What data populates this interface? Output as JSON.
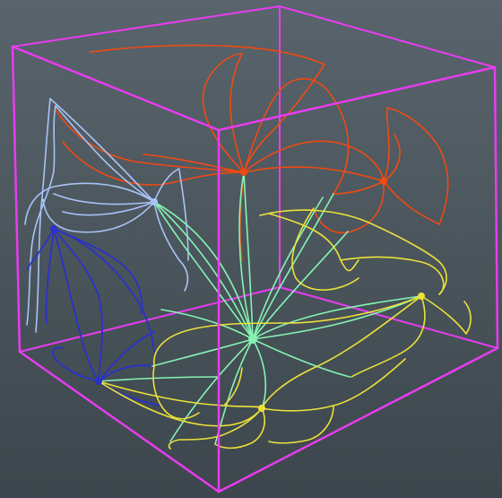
{
  "scene": {
    "background_top": "#59646c",
    "background_bottom": "#3c464c",
    "box_color": "#e83cf0",
    "bundles": [
      {
        "name": "red-bundle",
        "color": "#f04a12"
      },
      {
        "name": "light-blue-bundle",
        "color": "#a9c3f6"
      },
      {
        "name": "blue-bundle",
        "color": "#2a32c8"
      },
      {
        "name": "green-bundle",
        "color": "#86f4b4"
      },
      {
        "name": "yellow-bundle",
        "color": "#ece13a"
      }
    ]
  }
}
